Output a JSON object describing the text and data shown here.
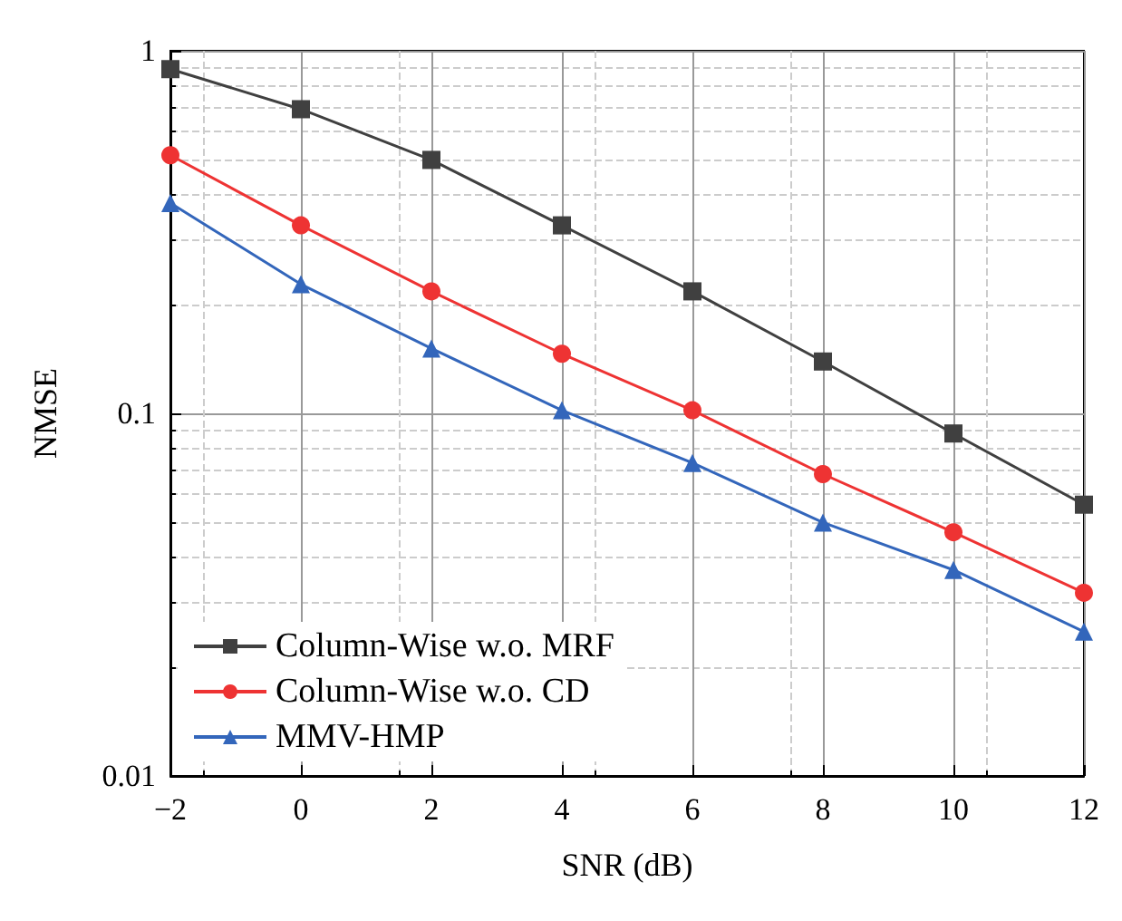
{
  "chart_data": {
    "type": "line",
    "xlabel": "SNR (dB)",
    "ylabel": "NMSE",
    "x": [
      -2,
      0,
      2,
      4,
      6,
      8,
      10,
      12
    ],
    "series": [
      {
        "name": "Column-Wise w.o. MRF",
        "color": "#404040",
        "marker": "square",
        "values": [
          0.89,
          0.69,
          0.5,
          0.33,
          0.217,
          0.139,
          0.088,
          0.056
        ]
      },
      {
        "name": "Column-Wise w.o. CD",
        "color": "#ee3333",
        "marker": "circle",
        "values": [
          0.515,
          0.33,
          0.217,
          0.146,
          0.102,
          0.068,
          0.047,
          0.032
        ]
      },
      {
        "name": "MMV-HMP",
        "color": "#3366bb",
        "marker": "triangle",
        "values": [
          0.38,
          0.227,
          0.151,
          0.102,
          0.073,
          0.05,
          0.037,
          0.025
        ]
      }
    ],
    "xlim": [
      -2,
      12
    ],
    "xticks": [
      {
        "value": -2,
        "label": "−2"
      },
      0,
      2,
      4,
      6,
      8,
      10,
      12
    ],
    "ylim": [
      0.01,
      1
    ],
    "yticks": [
      0.01,
      0.1,
      1
    ],
    "log": "y",
    "grid": true,
    "legend": "bottom left"
  }
}
